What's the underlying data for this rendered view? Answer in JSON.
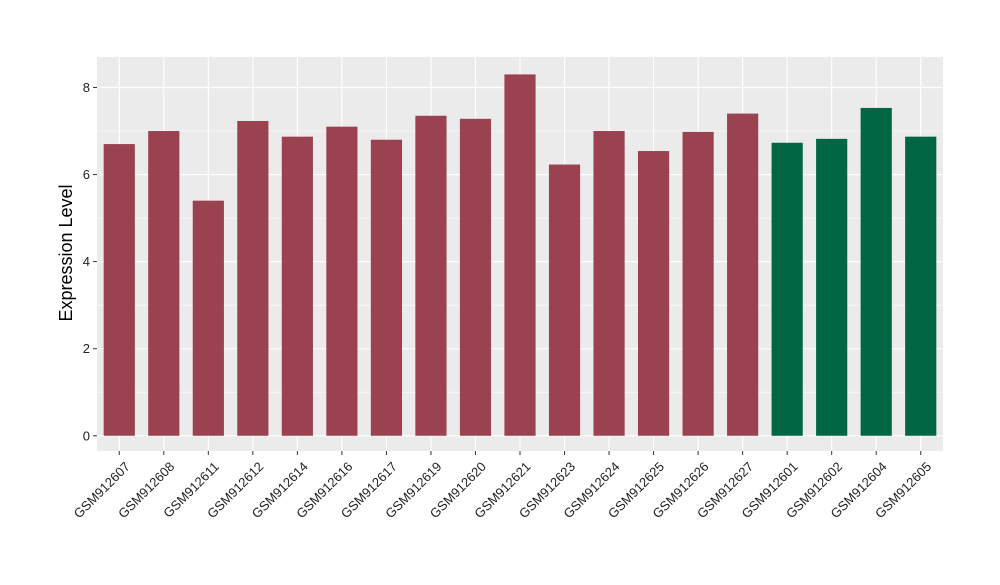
{
  "chart_data": {
    "type": "bar",
    "title": "",
    "xlabel": "",
    "ylabel": "Expression Level",
    "ylim": [
      -0.35,
      8.7
    ],
    "yticks": [
      0,
      2,
      4,
      6,
      8
    ],
    "grid": true,
    "background": "#EBEBEB",
    "colors": {
      "group1": "#9A4250",
      "group2": "#006644",
      "grid": "#FFFFFF"
    },
    "categories": [
      "GSM912607",
      "GSM912608",
      "GSM912611",
      "GSM912612",
      "GSM912614",
      "GSM912616",
      "GSM912617",
      "GSM912619",
      "GSM912620",
      "GSM912621",
      "GSM912623",
      "GSM912624",
      "GSM912625",
      "GSM912626",
      "GSM912627",
      "GSM912601",
      "GSM912602",
      "GSM912604",
      "GSM912605"
    ],
    "values": [
      6.7,
      7.0,
      5.4,
      7.23,
      6.87,
      7.1,
      6.8,
      7.35,
      7.28,
      8.3,
      6.23,
      7.0,
      6.54,
      6.98,
      7.4,
      6.73,
      6.82,
      7.53,
      6.87
    ],
    "groups": [
      1,
      1,
      1,
      1,
      1,
      1,
      1,
      1,
      1,
      1,
      1,
      1,
      1,
      1,
      1,
      2,
      2,
      2,
      2
    ]
  }
}
